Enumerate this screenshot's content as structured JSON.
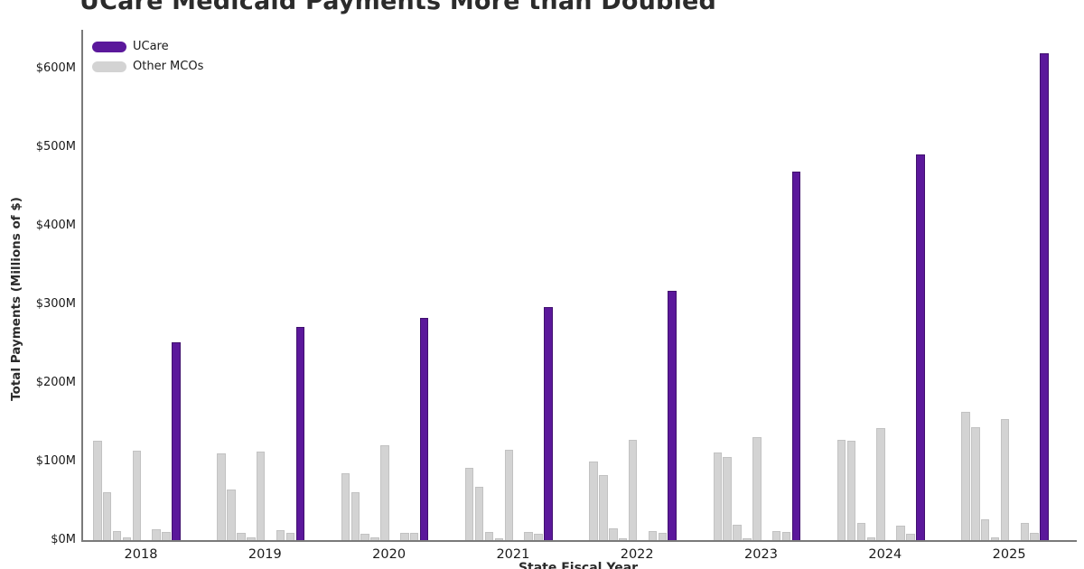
{
  "title": "UCare Medicaid Payments More than Doubled",
  "chart_data": {
    "type": "bar",
    "title": "UCare Medicaid Payments More than Doubled",
    "xlabel": "State Fiscal Year",
    "ylabel": "Total Payments (Millions of $)",
    "unit": "Millions of $",
    "ylim": [
      0,
      650
    ],
    "grid": false,
    "legend_position": "upper-left-inside",
    "legend": [
      {
        "label": "UCare",
        "color": "#5b189b"
      },
      {
        "label": "Other MCOs",
        "color": "#d3d3d3"
      }
    ],
    "yticks": [
      {
        "value": 0,
        "label": "$0M"
      },
      {
        "value": 100,
        "label": "$100M"
      },
      {
        "value": 200,
        "label": "$200M"
      },
      {
        "value": 300,
        "label": "$300M"
      },
      {
        "value": 400,
        "label": "$400M"
      },
      {
        "value": 500,
        "label": "$500M"
      },
      {
        "value": 600,
        "label": "$600M"
      }
    ],
    "categories": [
      "2018",
      "2019",
      "2020",
      "2021",
      "2022",
      "2023",
      "2024",
      "2025"
    ],
    "groups": [
      {
        "year": "2018",
        "other_mcos": [
          127,
          61,
          11,
          3,
          114,
          0,
          14,
          10
        ],
        "ucare": 252
      },
      {
        "year": "2019",
        "other_mcos": [
          110,
          65,
          9,
          3,
          113,
          0,
          13,
          9
        ],
        "ucare": 272
      },
      {
        "year": "2020",
        "other_mcos": [
          85,
          61,
          8,
          3,
          121,
          0,
          9,
          9
        ],
        "ucare": 283
      },
      {
        "year": "2021",
        "other_mcos": [
          92,
          68,
          10,
          2,
          115,
          0,
          10,
          8
        ],
        "ucare": 297
      },
      {
        "year": "2022",
        "other_mcos": [
          100,
          83,
          15,
          2,
          128,
          0,
          11,
          9
        ],
        "ucare": 317
      },
      {
        "year": "2023",
        "other_mcos": [
          112,
          106,
          20,
          2,
          131,
          0,
          12,
          10
        ],
        "ucare": 469
      },
      {
        "year": "2024",
        "other_mcos": [
          128,
          126,
          22,
          3,
          143,
          0,
          19,
          8
        ],
        "ucare": 491
      },
      {
        "year": "2025",
        "other_mcos": [
          163,
          144,
          26,
          4,
          154,
          0,
          22,
          9
        ],
        "ucare": 620
      }
    ],
    "colors": {
      "ucare_fill": "#5b189b",
      "ucare_edge": "#40106e",
      "other_fill": "#d3d3d3",
      "other_edge": "#c2c2c2",
      "axis": "#7a7a7a",
      "text": "#1a1a1a",
      "title_text": "#2b2b2b"
    }
  }
}
